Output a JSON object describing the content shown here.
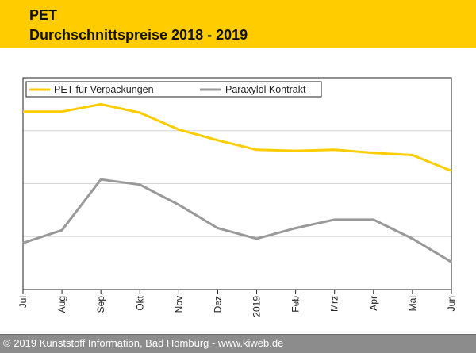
{
  "header": {
    "title": "PET",
    "subtitle": "Durchschnittspreise 2018 - 2019"
  },
  "footer": {
    "copyright": "© 2019 Kunststoff Information, Bad Homburg - www.kiweb.de"
  },
  "colors": {
    "header_bg": "#ffcc00",
    "pet_line": "#ffcc00",
    "paraxylol_line": "#999999",
    "footer_bg": "#8c8c8c"
  },
  "chart_data": {
    "type": "line",
    "title": "PET Durchschnittspreise 2018 - 2019",
    "categories": [
      "Jul",
      "Aug",
      "Sep",
      "Okt",
      "Nov",
      "Dez",
      "2019",
      "Feb",
      "Mrz",
      "Apr",
      "Mai",
      "Jun"
    ],
    "ylim": [
      0,
      100
    ],
    "y_gridlines": [
      25,
      50,
      75
    ],
    "y_tick_labels_shown": false,
    "legend_position": "top-left",
    "series": [
      {
        "name": "PET für Verpackungen",
        "color": "#ffcc00",
        "values": [
          84,
          84,
          87.5,
          83.5,
          75.5,
          70.5,
          66,
          65.5,
          66,
          64.5,
          63.5,
          56
        ]
      },
      {
        "name": "Paraxylol Kontrakt",
        "color": "#999999",
        "values": [
          22,
          28,
          52,
          49.5,
          40,
          29,
          24,
          29,
          33,
          33,
          24,
          13
        ]
      }
    ]
  }
}
